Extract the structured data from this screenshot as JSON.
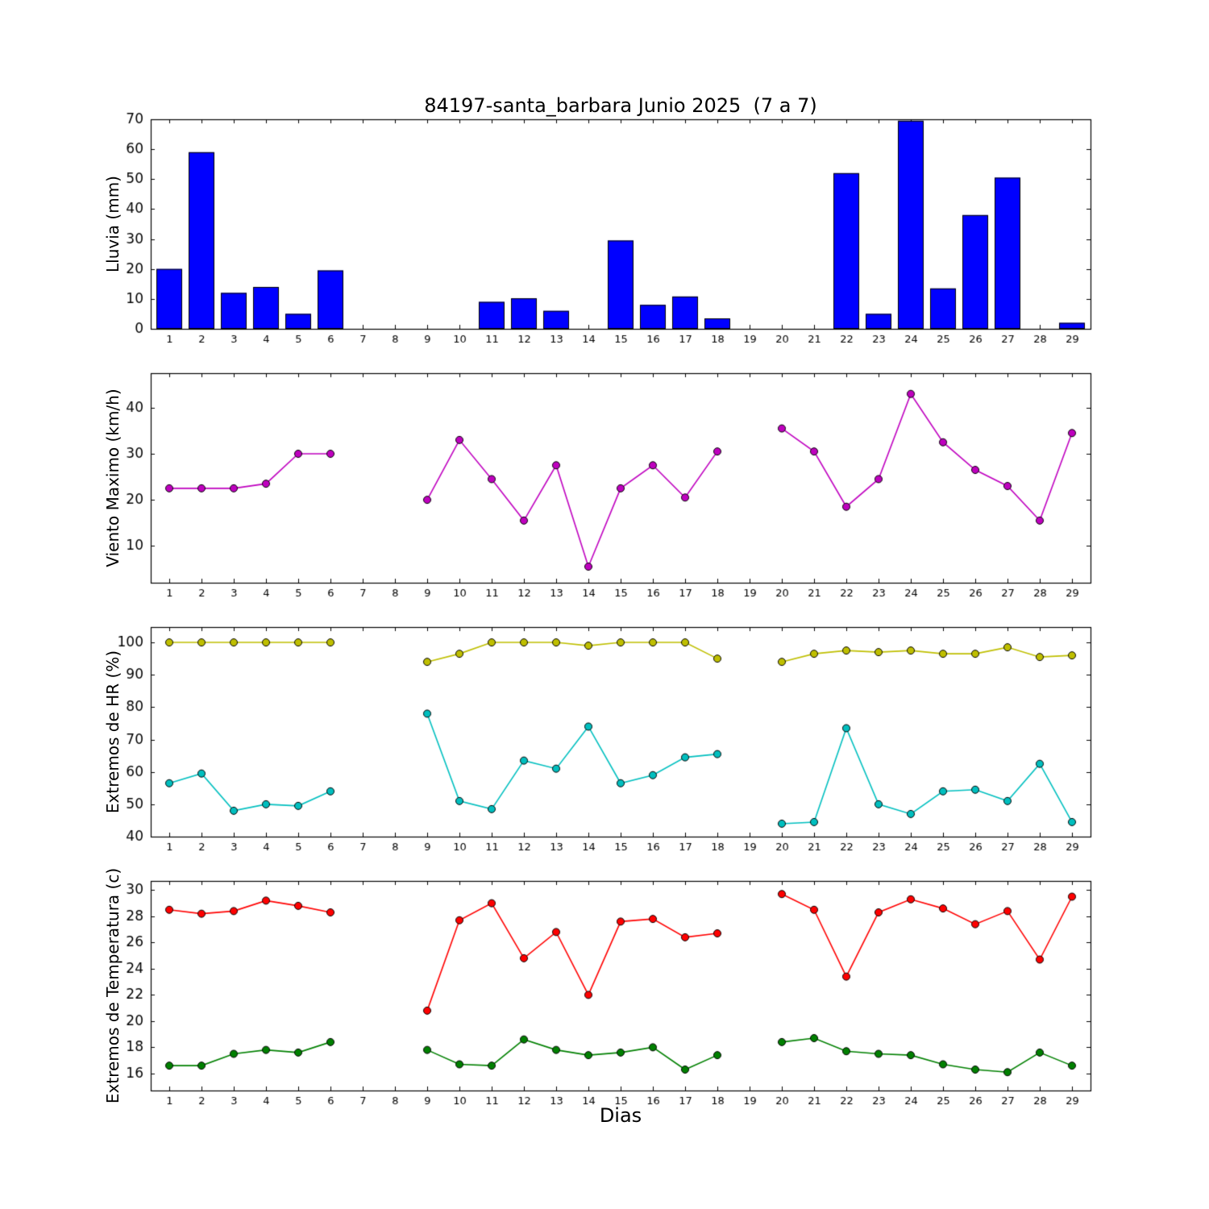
{
  "figure": {
    "title": "84197-santa_barbara Junio 2025  (7 a 7)",
    "xlabel": "Dias"
  },
  "chart_data": [
    {
      "type": "bar",
      "title": "84197-santa_barbara Junio 2025  (7 a 7)",
      "ylabel": "Lluvia (mm)",
      "x": [
        1,
        2,
        3,
        4,
        5,
        6,
        7,
        8,
        9,
        10,
        11,
        12,
        13,
        14,
        15,
        16,
        17,
        18,
        19,
        20,
        21,
        22,
        23,
        24,
        25,
        26,
        27,
        28,
        29
      ],
      "xticks": [
        1,
        2,
        3,
        4,
        5,
        6,
        7,
        8,
        9,
        10,
        11,
        12,
        13,
        14,
        15,
        16,
        17,
        18,
        19,
        20,
        21,
        22,
        23,
        24,
        25,
        26,
        27,
        28,
        29
      ],
      "ylim": [
        0,
        70
      ],
      "yticks": [
        0,
        10,
        20,
        30,
        40,
        50,
        60,
        70
      ],
      "grid": false,
      "series": [
        {
          "name": "lluvia",
          "color": "#0000ff",
          "values": [
            20,
            59,
            12,
            14,
            5,
            19.5,
            0,
            0,
            0,
            0,
            9,
            10.2,
            6,
            0,
            29.5,
            8,
            10.8,
            3.5,
            0,
            0,
            0,
            52,
            5,
            69.5,
            13.5,
            38,
            50.5,
            0,
            2
          ]
        }
      ]
    },
    {
      "type": "line",
      "ylabel": "Viento Maximo (km/h)",
      "x": [
        1,
        2,
        3,
        4,
        5,
        6,
        7,
        8,
        9,
        10,
        11,
        12,
        13,
        14,
        15,
        16,
        17,
        18,
        19,
        20,
        21,
        22,
        23,
        24,
        25,
        26,
        27,
        28,
        29
      ],
      "xticks": [
        1,
        2,
        3,
        4,
        5,
        6,
        7,
        8,
        9,
        10,
        11,
        12,
        13,
        14,
        15,
        16,
        17,
        18,
        19,
        20,
        21,
        22,
        23,
        24,
        25,
        26,
        27,
        28,
        29
      ],
      "ylim": [
        2,
        47.5
      ],
      "yticks": [
        10,
        20,
        30,
        40
      ],
      "grid": false,
      "series": [
        {
          "name": "viento-maximo",
          "color": "#bf00bf",
          "values": [
            22.5,
            22.5,
            22.5,
            23.5,
            30,
            30,
            null,
            null,
            20,
            33,
            24.5,
            15.5,
            27.5,
            5.5,
            22.5,
            27.5,
            20.5,
            30.5,
            null,
            35.5,
            30.5,
            18.5,
            24.5,
            43,
            32.5,
            26.5,
            23,
            15.5,
            34.5
          ]
        }
      ]
    },
    {
      "type": "line",
      "ylabel": "Extremos de HR (%)",
      "x": [
        1,
        2,
        3,
        4,
        5,
        6,
        7,
        8,
        9,
        10,
        11,
        12,
        13,
        14,
        15,
        16,
        17,
        18,
        19,
        20,
        21,
        22,
        23,
        24,
        25,
        26,
        27,
        28,
        29
      ],
      "xticks": [
        1,
        2,
        3,
        4,
        5,
        6,
        7,
        8,
        9,
        10,
        11,
        12,
        13,
        14,
        15,
        16,
        17,
        18,
        19,
        20,
        21,
        22,
        23,
        24,
        25,
        26,
        27,
        28,
        29
      ],
      "ylim": [
        40,
        104.75
      ],
      "yticks": [
        40,
        50,
        60,
        70,
        80,
        90,
        100
      ],
      "grid": false,
      "series": [
        {
          "name": "hr-maxima",
          "color": "#bfbf00",
          "values": [
            100,
            100,
            100,
            100,
            100,
            100,
            null,
            null,
            94,
            96.5,
            100,
            100,
            100,
            99,
            100,
            100,
            100,
            95,
            null,
            94,
            96.5,
            97.5,
            97,
            97.5,
            96.5,
            96.5,
            98.5,
            95.5,
            96
          ]
        },
        {
          "name": "hr-minima",
          "color": "#00bfbf",
          "values": [
            56.5,
            59.5,
            48,
            50,
            49.5,
            54,
            null,
            null,
            78,
            51,
            48.5,
            63.5,
            61,
            74,
            56.5,
            59,
            64.5,
            65.5,
            null,
            44,
            44.5,
            73.5,
            50,
            47,
            54,
            54.5,
            51,
            62.5,
            44.5
          ]
        }
      ]
    },
    {
      "type": "line",
      "ylabel": "Extremos de Temperatura (c)",
      "xlabel": "Dias",
      "x": [
        1,
        2,
        3,
        4,
        5,
        6,
        7,
        8,
        9,
        10,
        11,
        12,
        13,
        14,
        15,
        16,
        17,
        18,
        19,
        20,
        21,
        22,
        23,
        24,
        25,
        26,
        27,
        28,
        29
      ],
      "xticks": [
        1,
        2,
        3,
        4,
        5,
        6,
        7,
        8,
        9,
        10,
        11,
        12,
        13,
        14,
        15,
        16,
        17,
        18,
        19,
        20,
        21,
        22,
        23,
        24,
        25,
        26,
        27,
        28,
        29
      ],
      "ylim": [
        14.7,
        30.7
      ],
      "yticks": [
        16,
        18,
        20,
        22,
        24,
        26,
        28,
        30
      ],
      "grid": false,
      "series": [
        {
          "name": "temperatura-maxima",
          "color": "#ff0000",
          "values": [
            28.5,
            28.2,
            28.4,
            29.2,
            28.8,
            28.3,
            null,
            null,
            20.8,
            27.7,
            29.0,
            24.8,
            26.8,
            22.0,
            27.6,
            27.8,
            26.4,
            26.7,
            null,
            29.7,
            28.5,
            23.4,
            28.3,
            29.3,
            28.6,
            27.4,
            28.4,
            24.7,
            29.5
          ]
        },
        {
          "name": "temperatura-minima",
          "color": "#008000",
          "values": [
            16.6,
            16.6,
            17.5,
            17.8,
            17.6,
            18.4,
            null,
            null,
            17.8,
            16.7,
            16.6,
            18.6,
            17.8,
            17.4,
            17.6,
            18.0,
            16.3,
            17.4,
            null,
            18.4,
            18.7,
            17.7,
            17.5,
            17.4,
            16.7,
            16.3,
            16.1,
            17.6,
            16.6
          ]
        }
      ]
    }
  ]
}
